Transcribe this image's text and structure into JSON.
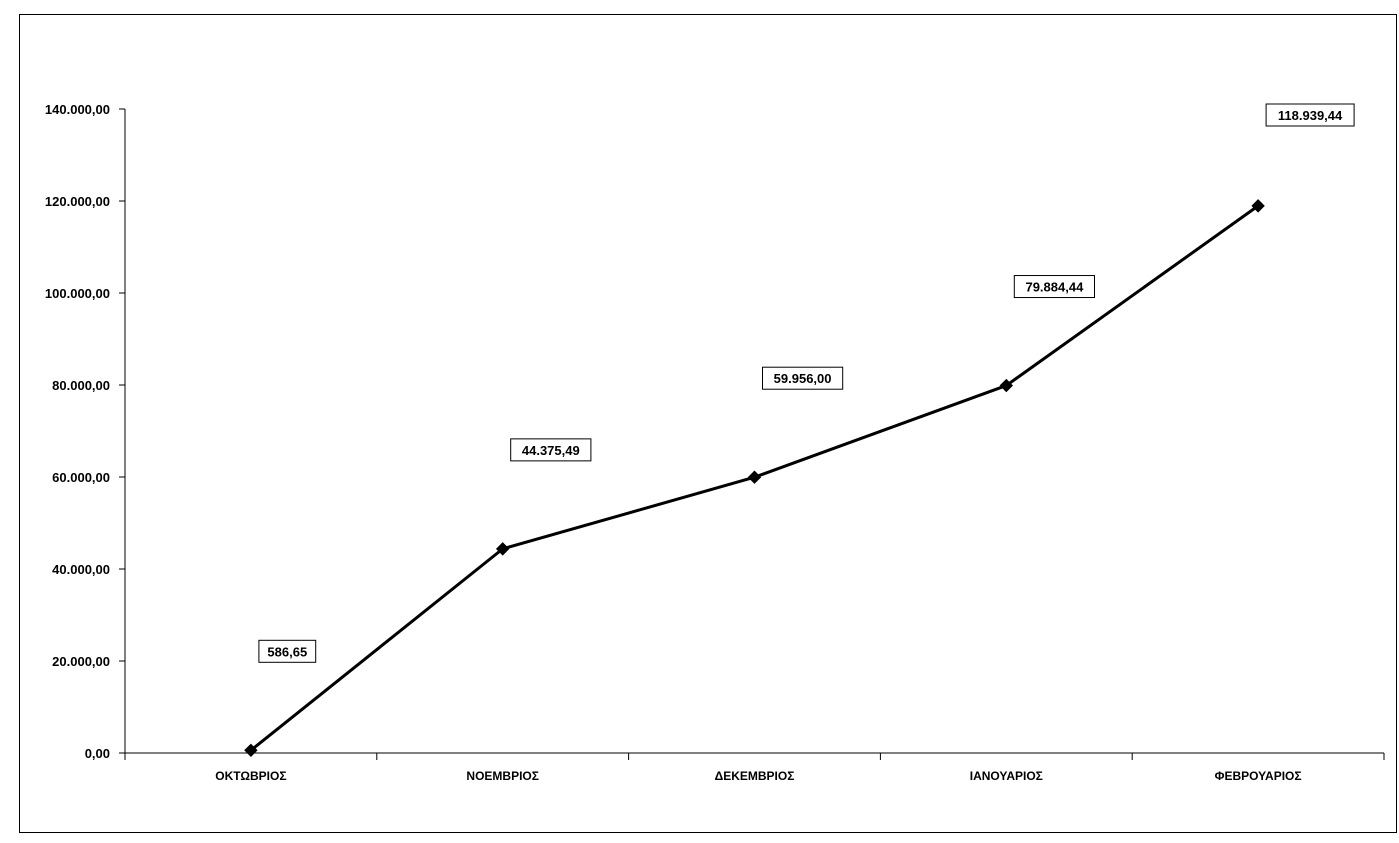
{
  "chart_data": {
    "type": "line",
    "title": "",
    "xlabel": "",
    "ylabel": "",
    "categories": [
      "ΟΚΤΩΒΡΙΟΣ",
      "ΝΟΕΜΒΡΙΟΣ",
      "ΔΕΚΕΜΒΡΙΟΣ",
      "ΙΑΝΟΥΑΡΙΟΣ",
      "ΦΕΒΡΟΥΑΡΙΟΣ"
    ],
    "series": [
      {
        "values": [
          586.65,
          44375.49,
          59956.0,
          79884.44,
          118939.44
        ],
        "data_labels": [
          "586,65",
          "44.375,49",
          "59.956,00",
          "79.884,44",
          "118.939,44"
        ],
        "color": "#000000",
        "marker": "diamond"
      }
    ],
    "ylim": [
      0,
      140000
    ],
    "yticks": [
      0,
      20000,
      40000,
      60000,
      80000,
      100000,
      120000,
      140000
    ],
    "ytick_labels": [
      "0,00",
      "20.000,00",
      "40.000,00",
      "60.000,00",
      "80.000,00",
      "100.000,00",
      "120.000,00",
      "140.000,00"
    ],
    "grid": false,
    "legend": "none"
  }
}
